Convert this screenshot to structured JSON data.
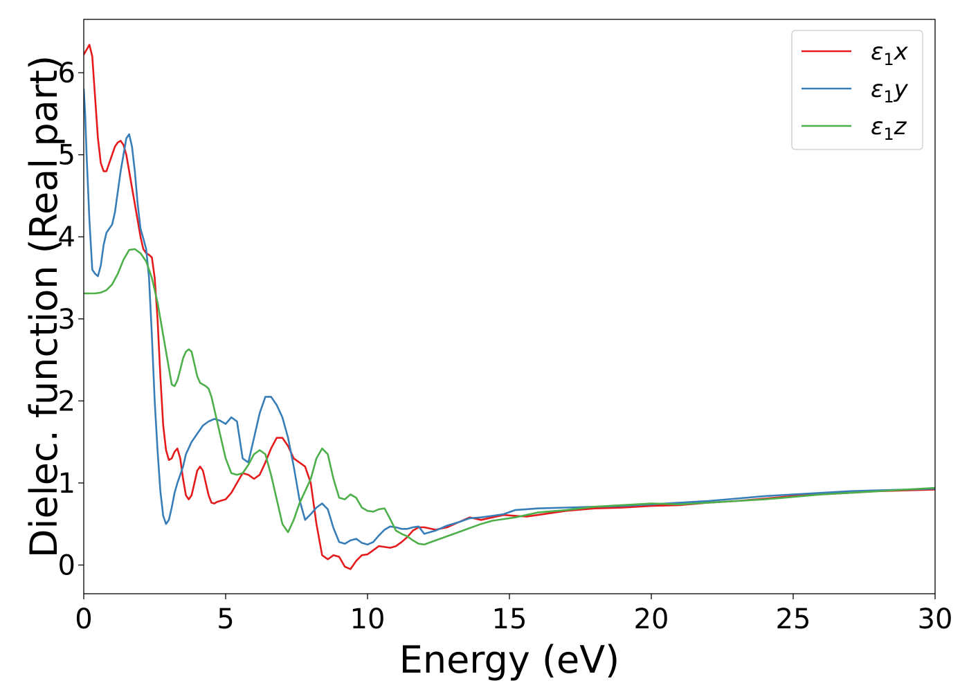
{
  "chart_data": {
    "type": "line",
    "title": "",
    "xlabel": "Energy (eV)",
    "ylabel": "Dielec. function (Real part)",
    "xlim": [
      0,
      30
    ],
    "ylim": [
      -0.35,
      6.65
    ],
    "xticks": [
      0,
      5,
      10,
      15,
      20,
      25,
      30
    ],
    "yticks": [
      0,
      1,
      2,
      3,
      4,
      5,
      6
    ],
    "grid": false,
    "legend": "top-right",
    "series": [
      {
        "name": "ε1x",
        "legend_base": "ε",
        "legend_sub": "1",
        "legend_suffix": "x",
        "color": "#e41a1c",
        "x": [
          0.0,
          0.1,
          0.2,
          0.3,
          0.4,
          0.5,
          0.6,
          0.7,
          0.8,
          0.9,
          1.0,
          1.1,
          1.2,
          1.3,
          1.4,
          1.5,
          1.6,
          1.7,
          1.8,
          1.9,
          2.0,
          2.1,
          2.2,
          2.3,
          2.4,
          2.5,
          2.6,
          2.7,
          2.8,
          2.9,
          3.0,
          3.1,
          3.2,
          3.3,
          3.4,
          3.5,
          3.6,
          3.7,
          3.8,
          3.9,
          4.0,
          4.1,
          4.2,
          4.3,
          4.4,
          4.5,
          4.6,
          4.7,
          4.8,
          4.9,
          5.0,
          5.2,
          5.4,
          5.6,
          5.8,
          6.0,
          6.2,
          6.4,
          6.6,
          6.8,
          7.0,
          7.2,
          7.4,
          7.6,
          7.8,
          8.0,
          8.2,
          8.4,
          8.6,
          8.8,
          9.0,
          9.2,
          9.4,
          9.6,
          9.8,
          10.0,
          10.2,
          10.4,
          10.6,
          10.8,
          11.0,
          11.2,
          11.4,
          11.6,
          11.8,
          12.0,
          12.4,
          12.8,
          13.2,
          13.6,
          14.0,
          14.4,
          14.8,
          15.2,
          15.6,
          16.0,
          17.0,
          18.0,
          19.0,
          20.0,
          21.0,
          22.0,
          23.0,
          24.0,
          25.0,
          26.0,
          27.0,
          28.0,
          29.0,
          30.0
        ],
        "y": [
          6.22,
          6.28,
          6.34,
          6.2,
          5.7,
          5.2,
          4.9,
          4.8,
          4.8,
          4.9,
          5.0,
          5.1,
          5.15,
          5.17,
          5.12,
          5.0,
          4.8,
          4.6,
          4.4,
          4.2,
          4.0,
          3.85,
          3.8,
          3.78,
          3.75,
          3.5,
          3.0,
          2.3,
          1.7,
          1.4,
          1.28,
          1.3,
          1.38,
          1.42,
          1.3,
          1.05,
          0.85,
          0.8,
          0.85,
          1.0,
          1.15,
          1.2,
          1.15,
          1.0,
          0.85,
          0.76,
          0.75,
          0.77,
          0.78,
          0.79,
          0.8,
          0.88,
          1.0,
          1.12,
          1.1,
          1.05,
          1.1,
          1.25,
          1.42,
          1.55,
          1.55,
          1.45,
          1.3,
          1.25,
          1.2,
          1.0,
          0.5,
          0.12,
          0.07,
          0.12,
          0.1,
          -0.02,
          -0.05,
          0.05,
          0.12,
          0.13,
          0.18,
          0.23,
          0.22,
          0.21,
          0.23,
          0.28,
          0.34,
          0.42,
          0.46,
          0.46,
          0.43,
          0.46,
          0.52,
          0.58,
          0.55,
          0.58,
          0.61,
          0.6,
          0.59,
          0.61,
          0.66,
          0.69,
          0.7,
          0.72,
          0.73,
          0.76,
          0.78,
          0.81,
          0.84,
          0.86,
          0.88,
          0.9,
          0.91,
          0.92
        ]
      },
      {
        "name": "ε1y",
        "legend_base": "ε",
        "legend_sub": "1",
        "legend_suffix": "y",
        "color": "#377eb8",
        "x": [
          0.0,
          0.05,
          0.1,
          0.2,
          0.3,
          0.4,
          0.5,
          0.6,
          0.7,
          0.8,
          0.9,
          1.0,
          1.1,
          1.2,
          1.3,
          1.4,
          1.5,
          1.6,
          1.7,
          1.8,
          1.9,
          2.0,
          2.1,
          2.2,
          2.3,
          2.4,
          2.5,
          2.6,
          2.7,
          2.8,
          2.9,
          3.0,
          3.1,
          3.2,
          3.3,
          3.4,
          3.5,
          3.6,
          3.8,
          4.0,
          4.2,
          4.4,
          4.6,
          4.8,
          5.0,
          5.2,
          5.4,
          5.6,
          5.8,
          6.0,
          6.2,
          6.4,
          6.6,
          6.8,
          7.0,
          7.2,
          7.4,
          7.6,
          7.8,
          8.0,
          8.2,
          8.4,
          8.6,
          8.8,
          9.0,
          9.2,
          9.4,
          9.6,
          9.8,
          10.0,
          10.2,
          10.4,
          10.6,
          10.8,
          11.0,
          11.2,
          11.4,
          11.6,
          11.8,
          12.0,
          12.4,
          12.8,
          13.2,
          13.6,
          14.0,
          14.4,
          14.8,
          15.2,
          15.6,
          16.0,
          17.0,
          18.0,
          19.0,
          20.0,
          21.0,
          22.0,
          23.0,
          24.0,
          25.0,
          26.0,
          27.0,
          28.0,
          29.0,
          30.0
        ],
        "y": [
          5.8,
          5.5,
          5.0,
          4.2,
          3.6,
          3.55,
          3.52,
          3.65,
          3.9,
          4.05,
          4.1,
          4.15,
          4.3,
          4.55,
          4.8,
          5.0,
          5.2,
          5.25,
          5.1,
          4.8,
          4.4,
          4.1,
          3.98,
          3.85,
          3.5,
          2.8,
          2.0,
          1.4,
          0.9,
          0.6,
          0.5,
          0.55,
          0.7,
          0.88,
          1.0,
          1.1,
          1.2,
          1.35,
          1.5,
          1.6,
          1.7,
          1.75,
          1.78,
          1.76,
          1.72,
          1.8,
          1.75,
          1.3,
          1.25,
          1.55,
          1.85,
          2.05,
          2.05,
          1.95,
          1.8,
          1.55,
          1.2,
          0.8,
          0.55,
          0.62,
          0.7,
          0.75,
          0.68,
          0.45,
          0.28,
          0.26,
          0.3,
          0.32,
          0.27,
          0.25,
          0.28,
          0.36,
          0.43,
          0.47,
          0.46,
          0.44,
          0.44,
          0.46,
          0.47,
          0.38,
          0.42,
          0.48,
          0.52,
          0.57,
          0.58,
          0.6,
          0.62,
          0.67,
          0.68,
          0.69,
          0.7,
          0.71,
          0.72,
          0.74,
          0.76,
          0.78,
          0.81,
          0.84,
          0.86,
          0.88,
          0.9,
          0.91,
          0.92,
          0.93
        ]
      },
      {
        "name": "ε1z",
        "legend_base": "ε",
        "legend_sub": "1",
        "legend_suffix": "z",
        "color": "#4daf4a",
        "x": [
          0.0,
          0.2,
          0.4,
          0.6,
          0.8,
          1.0,
          1.2,
          1.4,
          1.6,
          1.8,
          2.0,
          2.2,
          2.4,
          2.6,
          2.8,
          3.0,
          3.1,
          3.2,
          3.3,
          3.4,
          3.5,
          3.6,
          3.7,
          3.8,
          3.9,
          4.0,
          4.1,
          4.2,
          4.3,
          4.4,
          4.5,
          4.6,
          4.8,
          5.0,
          5.2,
          5.4,
          5.6,
          5.8,
          6.0,
          6.2,
          6.4,
          6.6,
          6.8,
          7.0,
          7.2,
          7.4,
          7.6,
          7.8,
          8.0,
          8.2,
          8.4,
          8.6,
          8.8,
          9.0,
          9.2,
          9.4,
          9.6,
          9.8,
          10.0,
          10.2,
          10.4,
          10.6,
          10.8,
          11.0,
          11.2,
          11.4,
          11.6,
          11.8,
          12.0,
          12.4,
          12.8,
          13.2,
          13.6,
          14.0,
          14.4,
          14.8,
          15.2,
          15.6,
          16.0,
          17.0,
          18.0,
          19.0,
          20.0,
          21.0,
          22.0,
          23.0,
          24.0,
          25.0,
          26.0,
          27.0,
          28.0,
          29.0,
          30.0
        ],
        "y": [
          3.31,
          3.31,
          3.31,
          3.32,
          3.35,
          3.42,
          3.55,
          3.72,
          3.84,
          3.85,
          3.8,
          3.7,
          3.5,
          3.2,
          2.8,
          2.4,
          2.2,
          2.18,
          2.25,
          2.38,
          2.52,
          2.6,
          2.63,
          2.6,
          2.45,
          2.3,
          2.22,
          2.2,
          2.18,
          2.15,
          2.05,
          1.9,
          1.6,
          1.3,
          1.12,
          1.1,
          1.12,
          1.22,
          1.35,
          1.4,
          1.35,
          1.1,
          0.8,
          0.5,
          0.4,
          0.55,
          0.75,
          0.9,
          1.05,
          1.3,
          1.42,
          1.35,
          1.05,
          0.82,
          0.8,
          0.86,
          0.82,
          0.7,
          0.66,
          0.65,
          0.68,
          0.69,
          0.56,
          0.42,
          0.38,
          0.35,
          0.3,
          0.26,
          0.25,
          0.3,
          0.35,
          0.4,
          0.45,
          0.5,
          0.54,
          0.56,
          0.58,
          0.61,
          0.64,
          0.67,
          0.71,
          0.73,
          0.75,
          0.74,
          0.76,
          0.78,
          0.8,
          0.83,
          0.86,
          0.88,
          0.9,
          0.92,
          0.94
        ]
      }
    ]
  }
}
